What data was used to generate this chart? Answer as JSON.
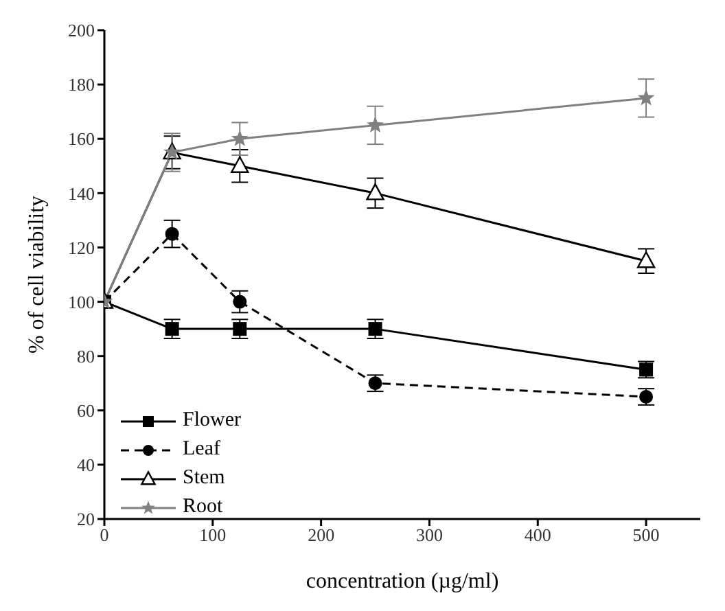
{
  "chart_data": {
    "type": "line",
    "xlabel": "concentration (µg/ml)",
    "ylabel": "% of cell viability",
    "x": [
      0,
      62.5,
      125,
      250,
      500
    ],
    "series": [
      {
        "name": "Flower",
        "color": "#000000",
        "marker": "square",
        "line_style": "solid",
        "values": [
          100,
          90,
          90,
          90,
          75
        ],
        "errors": [
          null,
          3.5,
          3.5,
          3.5,
          3
        ]
      },
      {
        "name": "Leaf",
        "color": "#000000",
        "marker": "circle",
        "line_style": "dashed",
        "values": [
          100,
          125,
          100,
          70,
          65
        ],
        "errors": [
          null,
          5,
          4,
          3,
          3
        ]
      },
      {
        "name": "Stem",
        "color": "#000000",
        "marker": "triangle",
        "line_style": "solid",
        "values": [
          100,
          155,
          150,
          140,
          115
        ],
        "errors": [
          null,
          6,
          6,
          5.5,
          4.5
        ]
      },
      {
        "name": "Root",
        "color": "#808080",
        "marker": "star",
        "line_style": "solid",
        "values": [
          100,
          155,
          160,
          165,
          175
        ],
        "errors": [
          null,
          7,
          6,
          7,
          7
        ]
      }
    ],
    "xlim": [
      0,
      550
    ],
    "xticks": [
      0,
      100,
      200,
      300,
      400,
      500
    ],
    "ylim": [
      20,
      200
    ],
    "yticks": [
      20,
      40,
      60,
      80,
      100,
      120,
      140,
      160,
      180,
      200
    ],
    "grid": false,
    "legend": "bottom left"
  }
}
